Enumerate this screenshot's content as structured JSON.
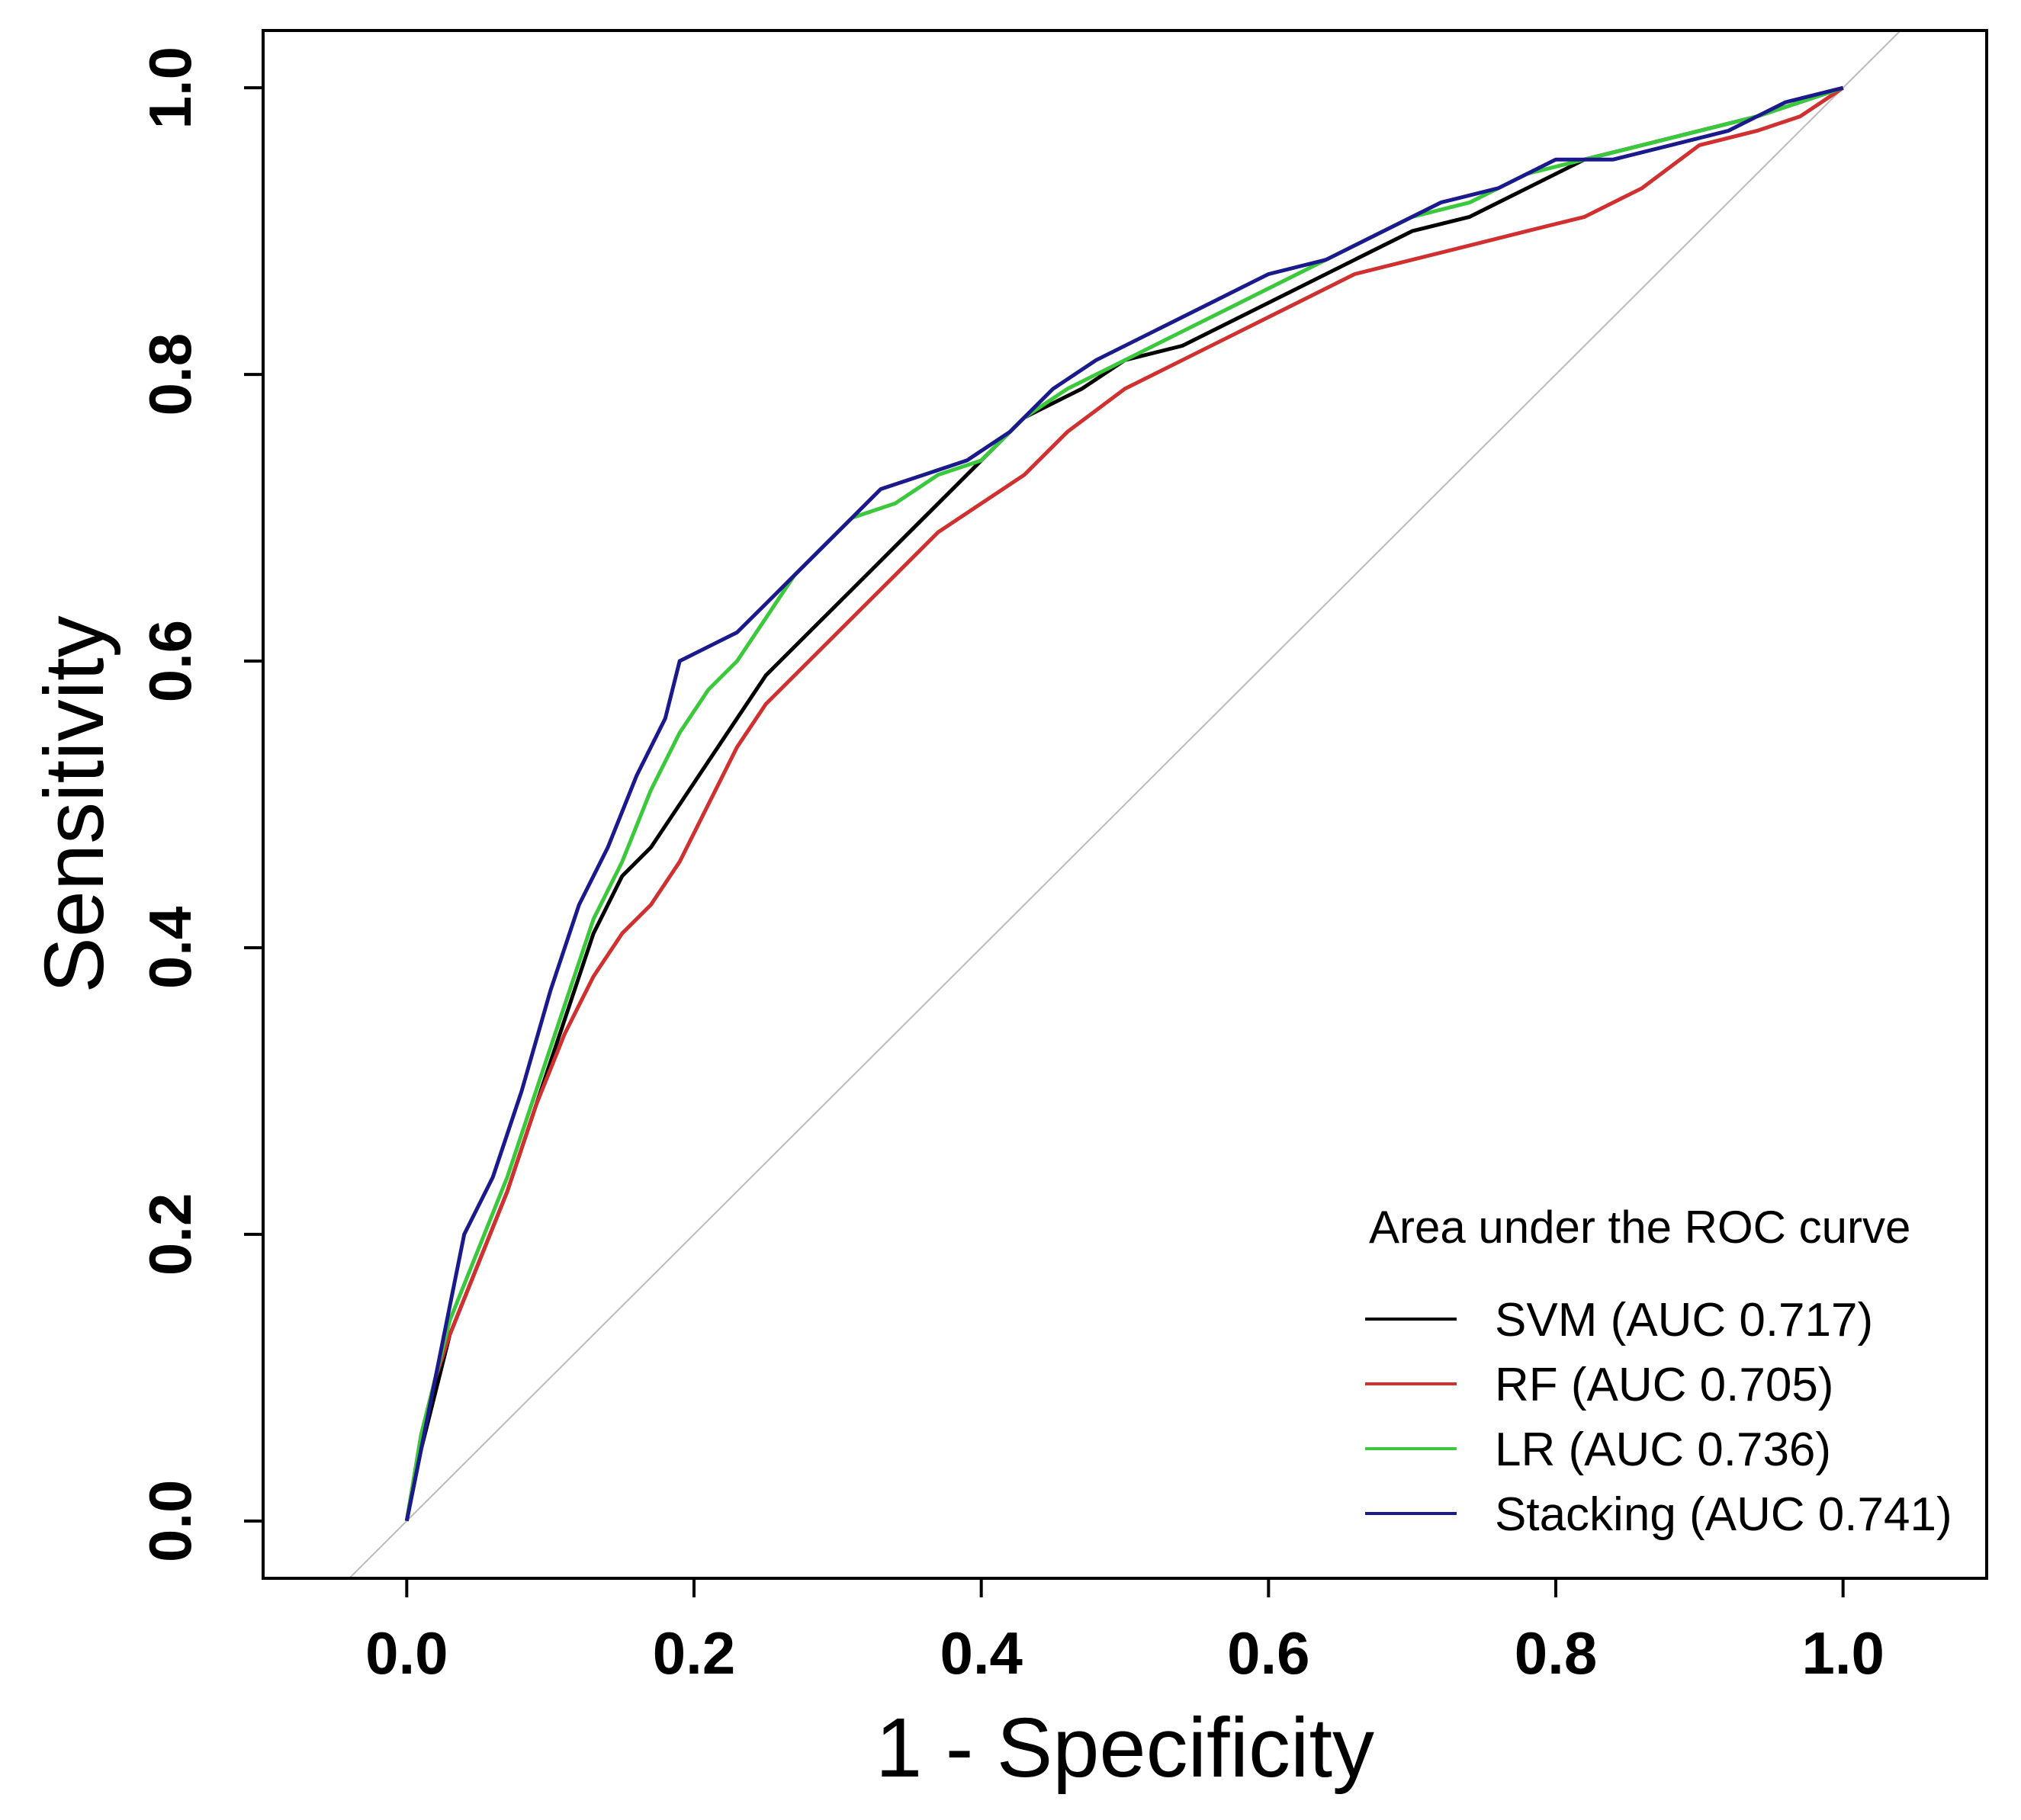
{
  "chart_data": {
    "type": "line",
    "title": "",
    "xlabel": "1 - Specificity",
    "ylabel": "Sensitivity",
    "xlim": [
      -0.1,
      1.1
    ],
    "ylim": [
      -0.04,
      1.04
    ],
    "xticks": [
      0.0,
      0.2,
      0.4,
      0.6,
      0.8,
      1.0
    ],
    "yticks": [
      0.0,
      0.2,
      0.4,
      0.6,
      0.8,
      1.0
    ],
    "xtick_labels": [
      "0.0",
      "0.2",
      "0.4",
      "0.6",
      "0.8",
      "1.0"
    ],
    "ytick_labels": [
      "0.0",
      "0.2",
      "0.4",
      "0.6",
      "0.8",
      "1.0"
    ],
    "grid": false,
    "legend": {
      "title": "Area under the ROC curve",
      "position": "bottom-right"
    },
    "reference_line": {
      "from": [
        -0.05,
        -0.05
      ],
      "to": [
        1.05,
        1.05
      ],
      "color": "#bbbbbb"
    },
    "series": [
      {
        "name": "SVM (AUC 0.717)",
        "color": "#000000",
        "x": [
          0.0,
          0.01,
          0.02,
          0.03,
          0.05,
          0.07,
          0.09,
          0.11,
          0.13,
          0.15,
          0.17,
          0.19,
          0.21,
          0.23,
          0.25,
          0.28,
          0.31,
          0.34,
          0.37,
          0.4,
          0.43,
          0.47,
          0.5,
          0.54,
          0.58,
          0.62,
          0.66,
          0.7,
          0.74,
          0.78,
          0.82,
          0.86,
          0.9,
          0.94,
          0.97,
          1.0
        ],
        "y": [
          0.0,
          0.05,
          0.09,
          0.13,
          0.18,
          0.23,
          0.29,
          0.35,
          0.41,
          0.45,
          0.47,
          0.5,
          0.53,
          0.56,
          0.59,
          0.62,
          0.65,
          0.68,
          0.71,
          0.74,
          0.77,
          0.79,
          0.81,
          0.82,
          0.84,
          0.86,
          0.88,
          0.9,
          0.91,
          0.93,
          0.95,
          0.96,
          0.97,
          0.98,
          0.99,
          1.0
        ]
      },
      {
        "name": "RF (AUC 0.705)",
        "color": "#d03030",
        "x": [
          0.0,
          0.01,
          0.02,
          0.03,
          0.05,
          0.07,
          0.09,
          0.11,
          0.13,
          0.15,
          0.17,
          0.19,
          0.21,
          0.23,
          0.25,
          0.28,
          0.31,
          0.34,
          0.37,
          0.4,
          0.43,
          0.46,
          0.5,
          0.54,
          0.58,
          0.62,
          0.66,
          0.7,
          0.74,
          0.78,
          0.82,
          0.86,
          0.9,
          0.94,
          0.97,
          1.0
        ],
        "y": [
          0.0,
          0.06,
          0.1,
          0.13,
          0.18,
          0.23,
          0.29,
          0.34,
          0.38,
          0.41,
          0.43,
          0.46,
          0.5,
          0.54,
          0.57,
          0.6,
          0.63,
          0.66,
          0.69,
          0.71,
          0.73,
          0.76,
          0.79,
          0.81,
          0.83,
          0.85,
          0.87,
          0.88,
          0.89,
          0.9,
          0.91,
          0.93,
          0.96,
          0.97,
          0.98,
          1.0
        ]
      },
      {
        "name": "LR (AUC 0.736)",
        "color": "#3cc83c",
        "x": [
          0.0,
          0.01,
          0.02,
          0.03,
          0.05,
          0.07,
          0.09,
          0.11,
          0.13,
          0.15,
          0.17,
          0.19,
          0.21,
          0.23,
          0.25,
          0.27,
          0.29,
          0.31,
          0.34,
          0.37,
          0.4,
          0.43,
          0.46,
          0.5,
          0.54,
          0.58,
          0.62,
          0.66,
          0.7,
          0.74,
          0.78,
          0.82,
          0.86,
          0.9,
          0.94,
          0.97,
          1.0
        ],
        "y": [
          0.0,
          0.06,
          0.1,
          0.14,
          0.19,
          0.24,
          0.3,
          0.36,
          0.42,
          0.46,
          0.51,
          0.55,
          0.58,
          0.6,
          0.63,
          0.66,
          0.68,
          0.7,
          0.71,
          0.73,
          0.74,
          0.77,
          0.79,
          0.81,
          0.83,
          0.85,
          0.87,
          0.89,
          0.91,
          0.92,
          0.94,
          0.95,
          0.96,
          0.97,
          0.98,
          0.99,
          1.0
        ]
      },
      {
        "name": "Stacking (AUC 0.741)",
        "color": "#1a1a8c",
        "x": [
          0.0,
          0.01,
          0.02,
          0.03,
          0.04,
          0.06,
          0.08,
          0.1,
          0.12,
          0.14,
          0.16,
          0.18,
          0.19,
          0.21,
          0.23,
          0.25,
          0.27,
          0.29,
          0.31,
          0.33,
          0.36,
          0.39,
          0.42,
          0.45,
          0.48,
          0.52,
          0.56,
          0.6,
          0.64,
          0.68,
          0.72,
          0.76,
          0.8,
          0.84,
          0.88,
          0.92,
          0.96,
          1.0
        ],
        "y": [
          0.0,
          0.05,
          0.1,
          0.15,
          0.2,
          0.24,
          0.3,
          0.37,
          0.43,
          0.47,
          0.52,
          0.56,
          0.6,
          0.61,
          0.62,
          0.64,
          0.66,
          0.68,
          0.7,
          0.72,
          0.73,
          0.74,
          0.76,
          0.79,
          0.81,
          0.83,
          0.85,
          0.87,
          0.88,
          0.9,
          0.92,
          0.93,
          0.95,
          0.95,
          0.96,
          0.97,
          0.99,
          1.0
        ]
      }
    ]
  }
}
